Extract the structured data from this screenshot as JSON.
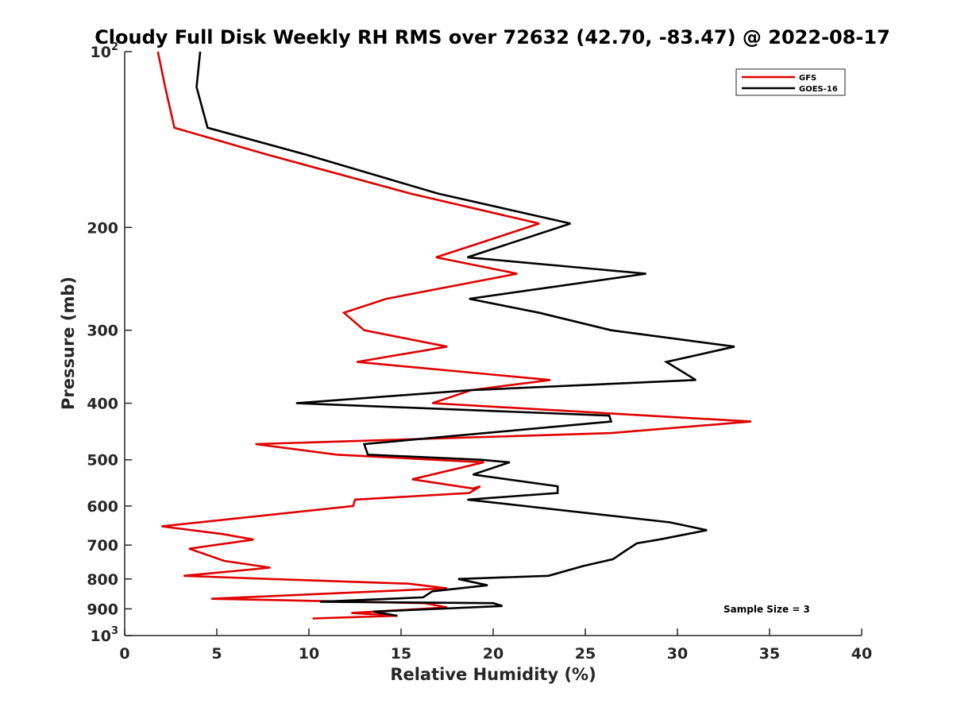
{
  "chart_data": {
    "type": "line",
    "title": "Cloudy Full Disk Weekly RH RMS over 72632 (42.70, -83.47) @ 2022-08-17",
    "xlabel": "Relative Humidity (%)",
    "ylabel": "Pressure (mb)",
    "xlim": [
      0,
      40
    ],
    "ylim": [
      100,
      1000
    ],
    "yscale": "log",
    "y_reversed": true,
    "xticks": [
      0,
      5,
      10,
      15,
      20,
      25,
      30,
      35,
      40
    ],
    "yticks": [
      {
        "value": 100,
        "base": "10",
        "exp": "2"
      },
      {
        "value": 200,
        "label": "200"
      },
      {
        "value": 300,
        "label": "300"
      },
      {
        "value": 400,
        "label": "400"
      },
      {
        "value": 500,
        "label": "500"
      },
      {
        "value": 600,
        "label": "600"
      },
      {
        "value": 700,
        "label": "700"
      },
      {
        "value": 800,
        "label": "800"
      },
      {
        "value": 900,
        "label": "900"
      },
      {
        "value": 1000,
        "base": "10",
        "exp": "3"
      }
    ],
    "grid": false,
    "legend_position": "top-right",
    "series": [
      {
        "name": "GFS",
        "color": "#e00000",
        "points": [
          [
            1.8,
            100
          ],
          [
            2.2,
            115
          ],
          [
            2.7,
            135
          ],
          [
            7.7,
            150
          ],
          [
            15.5,
            175
          ],
          [
            22.5,
            197
          ],
          [
            16.9,
            225
          ],
          [
            21.3,
            240
          ],
          [
            14.2,
            265
          ],
          [
            11.9,
            280
          ],
          [
            13.0,
            300
          ],
          [
            17.5,
            320
          ],
          [
            12.6,
            340
          ],
          [
            23.1,
            365
          ],
          [
            18.8,
            380
          ],
          [
            16.7,
            400
          ],
          [
            34.0,
            430
          ],
          [
            26.4,
            450
          ],
          [
            7.1,
            470
          ],
          [
            11.5,
            490
          ],
          [
            19.5,
            505
          ],
          [
            15.6,
            540
          ],
          [
            18.9,
            560
          ],
          [
            19.3,
            555
          ],
          [
            18.7,
            570
          ],
          [
            12.5,
            585
          ],
          [
            12.4,
            600
          ],
          [
            2.0,
            650
          ],
          [
            5.3,
            670
          ],
          [
            7.0,
            685
          ],
          [
            3.5,
            710
          ],
          [
            5.4,
            745
          ],
          [
            7.9,
            765
          ],
          [
            3.2,
            790
          ],
          [
            7.9,
            800
          ],
          [
            15.4,
            815
          ],
          [
            17.5,
            830
          ],
          [
            4.7,
            865
          ],
          [
            16.3,
            880
          ],
          [
            17.5,
            895
          ],
          [
            12.3,
            915
          ],
          [
            14.8,
            925
          ],
          [
            10.2,
            935
          ]
        ]
      },
      {
        "name": "GOES-16",
        "color": "#000000",
        "points": [
          [
            4.1,
            100
          ],
          [
            3.9,
            115
          ],
          [
            4.5,
            135
          ],
          [
            9.8,
            150
          ],
          [
            17.0,
            175
          ],
          [
            24.2,
            197
          ],
          [
            18.6,
            225
          ],
          [
            28.3,
            240
          ],
          [
            18.7,
            265
          ],
          [
            22.5,
            280
          ],
          [
            26.4,
            300
          ],
          [
            33.1,
            320
          ],
          [
            29.4,
            340
          ],
          [
            31.0,
            365
          ],
          [
            18.8,
            380
          ],
          [
            9.3,
            400
          ],
          [
            26.3,
            420
          ],
          [
            26.4,
            430
          ],
          [
            13.0,
            470
          ],
          [
            13.2,
            490
          ],
          [
            19.3,
            500
          ],
          [
            20.9,
            505
          ],
          [
            18.9,
            530
          ],
          [
            23.5,
            555
          ],
          [
            23.5,
            570
          ],
          [
            18.6,
            585
          ],
          [
            29.6,
            640
          ],
          [
            31.6,
            660
          ],
          [
            29.0,
            685
          ],
          [
            27.8,
            695
          ],
          [
            27.2,
            715
          ],
          [
            26.5,
            740
          ],
          [
            24.9,
            760
          ],
          [
            23.0,
            790
          ],
          [
            18.1,
            800
          ],
          [
            19.7,
            820
          ],
          [
            16.7,
            840
          ],
          [
            16.2,
            860
          ],
          [
            10.6,
            875
          ],
          [
            20.0,
            880
          ],
          [
            20.5,
            890
          ],
          [
            13.5,
            910
          ],
          [
            14.8,
            925
          ]
        ]
      }
    ],
    "annotations": [
      {
        "text": "Sample Size = 3"
      }
    ]
  }
}
